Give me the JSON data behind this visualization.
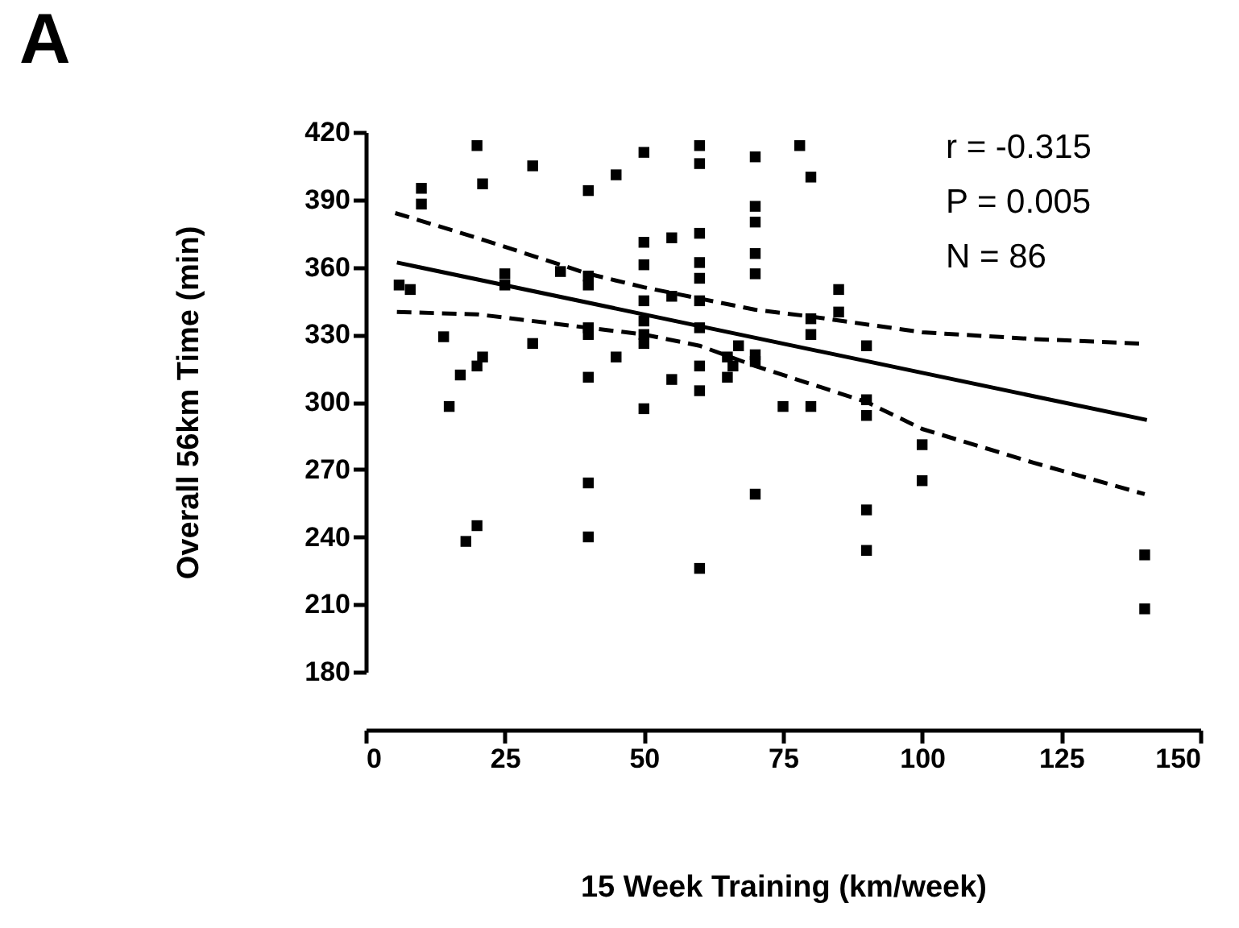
{
  "chart_data": {
    "type": "scatter",
    "title": "A",
    "xlabel": "15 Week Training (km/week)",
    "ylabel": "Overall 56km Time (min)",
    "annotations": [
      "r = -0.315",
      "P = 0.005",
      "N = 86"
    ],
    "xlim": [
      0,
      150
    ],
    "xticks": [
      0,
      25,
      50,
      75,
      100,
      125,
      150
    ],
    "ylim": [
      180,
      420
    ],
    "yticks": [
      180,
      210,
      240,
      270,
      300,
      330,
      360,
      390,
      420
    ],
    "grid": false,
    "series": [
      {
        "marker": "square",
        "color": "#000000",
        "x": [
          20,
          30,
          21,
          10,
          10,
          40,
          45,
          50,
          60,
          60,
          70,
          50,
          50,
          55,
          60,
          60,
          60,
          70,
          70,
          70,
          70,
          35,
          40,
          40,
          25,
          25,
          6,
          8,
          50,
          50,
          50,
          50,
          55,
          60,
          60,
          14,
          30,
          40,
          40,
          45,
          21,
          20,
          17,
          40,
          55,
          60,
          65,
          67,
          66,
          65,
          70,
          15,
          50,
          60,
          70,
          40,
          40,
          20,
          18,
          60,
          78,
          80,
          85,
          85,
          80,
          80,
          90,
          75,
          80,
          90,
          90,
          100,
          100,
          90,
          90,
          140,
          140,
          70
        ],
        "values": [
          414,
          405,
          397,
          395,
          388,
          394,
          401,
          411,
          414,
          406,
          409,
          371,
          361,
          373,
          375,
          362,
          355,
          387,
          380,
          366,
          357,
          358,
          356,
          352,
          357,
          352,
          352,
          350,
          345,
          336,
          330,
          326,
          347,
          345,
          333,
          329,
          326,
          333,
          330,
          320,
          320,
          316,
          312,
          311,
          310,
          316,
          320,
          325,
          316,
          311,
          321,
          298,
          297,
          305,
          259,
          264,
          240,
          245,
          238,
          226,
          414,
          400,
          350,
          340,
          337,
          330,
          325,
          298,
          298,
          301,
          294,
          281,
          265,
          252,
          234,
          232,
          208,
          318
        ]
      },
      {
        "type": "line",
        "line_style": "solid",
        "marker": "none",
        "color": "#000000",
        "x": [
          5.6,
          140.4
        ],
        "values": [
          362,
          292
        ]
      },
      {
        "type": "line",
        "line_style": "dashed",
        "marker": "none",
        "color": "#000000",
        "x": [
          5.3,
          20,
          40,
          50,
          60,
          70,
          80,
          100,
          120,
          139
        ],
        "values": [
          384,
          373,
          357,
          351,
          346,
          341,
          338,
          331,
          328,
          326
        ]
      },
      {
        "type": "line",
        "line_style": "dashed",
        "marker": "none",
        "color": "#000000",
        "x": [
          5.6,
          20,
          40,
          50,
          60,
          70,
          90,
          100,
          120,
          140
        ],
        "values": [
          340,
          339,
          333,
          330,
          325,
          316,
          300,
          288,
          273,
          259
        ]
      }
    ]
  }
}
